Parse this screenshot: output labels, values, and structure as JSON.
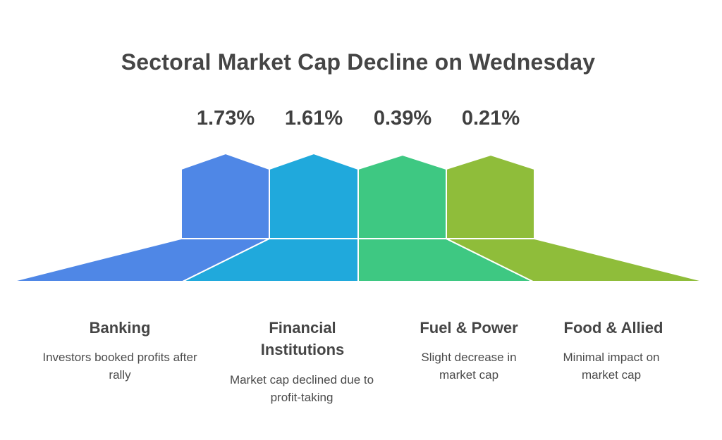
{
  "title": "Sectoral Market Cap Decline on Wednesday",
  "sectors": [
    {
      "name": "Banking",
      "percent": "1.73%",
      "description": "Investors booked profits after rally",
      "color": "#4f87e6"
    },
    {
      "name": "Financial Institutions",
      "percent": "1.61%",
      "description": "Market cap declined due to profit-taking",
      "color": "#20a9dc"
    },
    {
      "name": "Fuel & Power",
      "percent": "0.39%",
      "description": "Slight decrease in market cap",
      "color": "#3ec882"
    },
    {
      "name": "Food & Allied",
      "percent": "0.21%",
      "description": "Minimal impact on market cap",
      "color": "#8fbd3a"
    }
  ]
}
